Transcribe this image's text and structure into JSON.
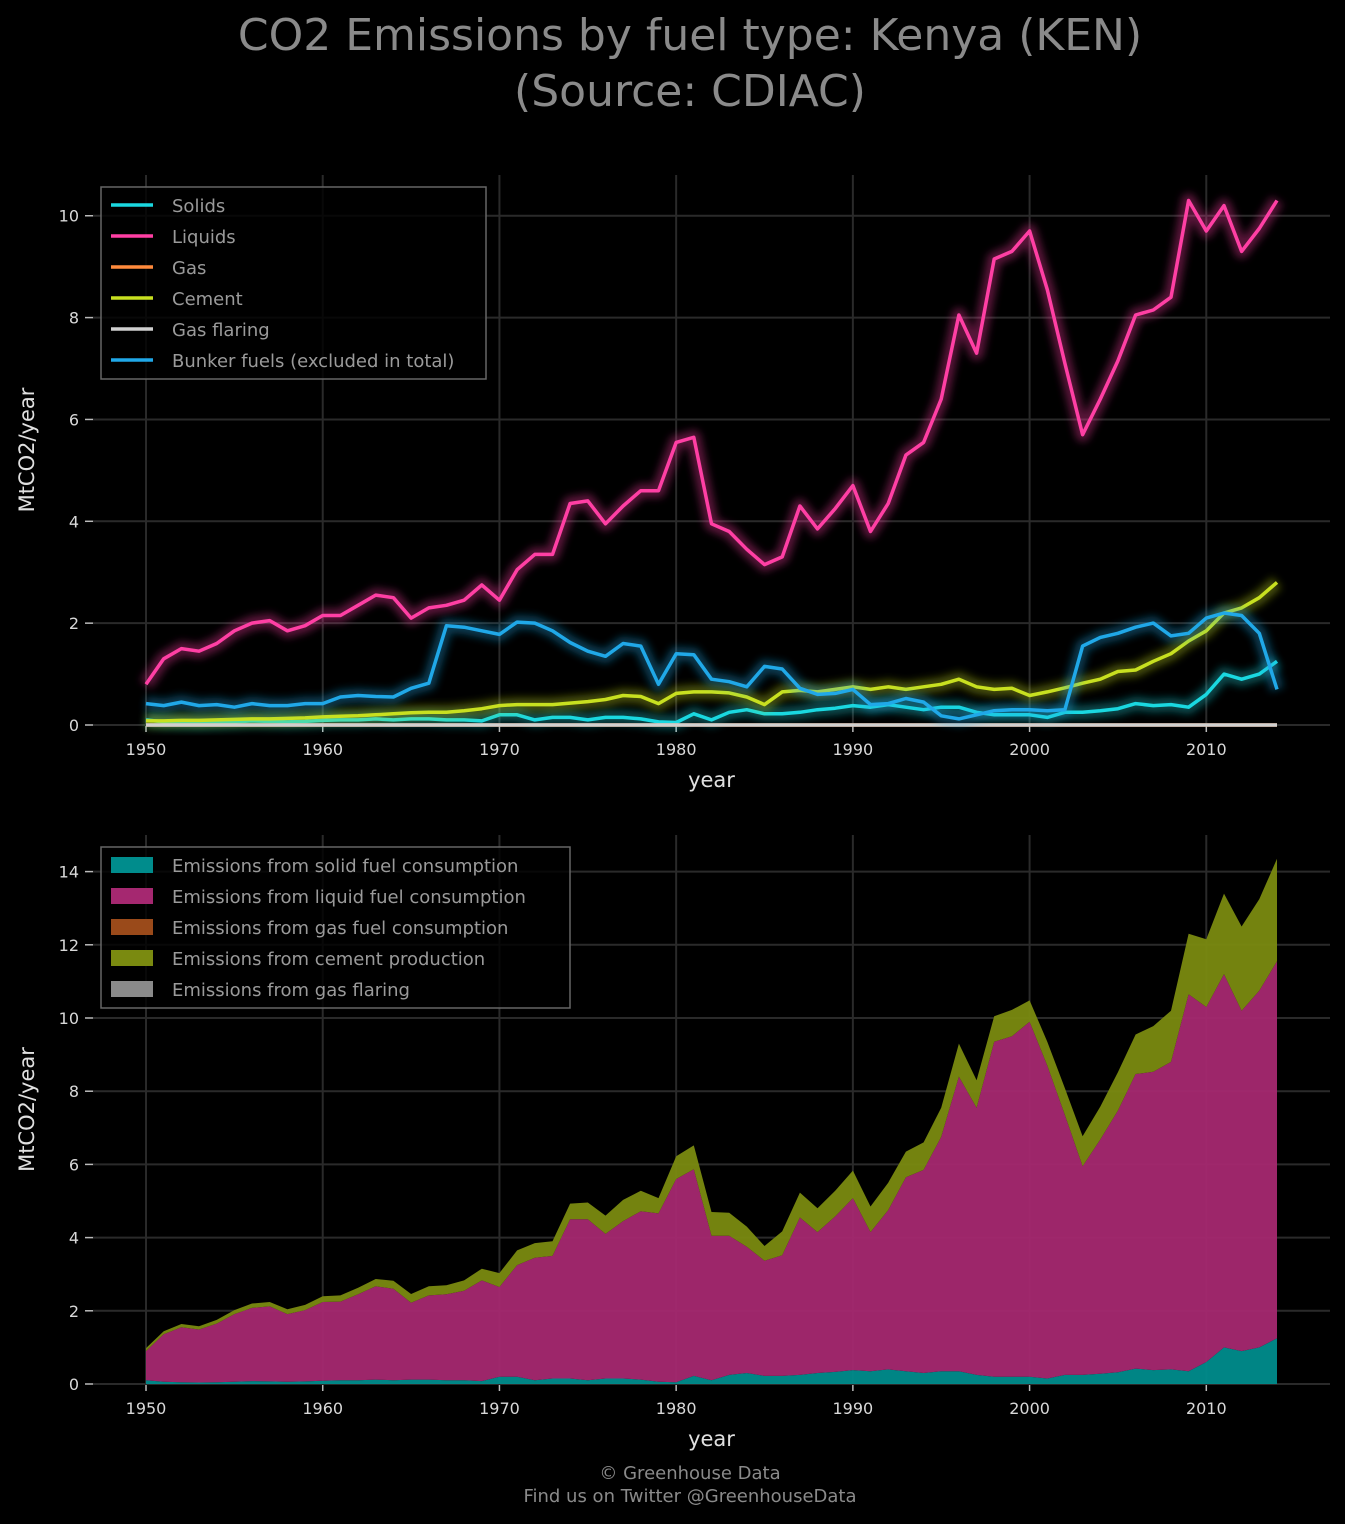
{
  "title": {
    "line1": "CO2 Emissions by fuel type: Kenya (KEN)",
    "line2": "(Source: CDIAC)"
  },
  "credits": {
    "line1": "© Greenhouse Data",
    "line2": "Find us on Twitter @GreenhouseData"
  },
  "colors": {
    "background": "#000000",
    "grid": "#2a2a2a",
    "solids": "#1ad8e0",
    "liquids": "#ff3fa4",
    "gas": "#ff8a3c",
    "cement": "#c8e020",
    "gas_flaring": "#d0d0d0",
    "bunker": "#20a8e8",
    "area_solid": "#008c8c",
    "area_liquid": "#a52870",
    "area_gas": "#9a4a1a",
    "area_cement": "#7a8a10",
    "area_flaring": "#8a8a8a"
  },
  "chart_data": [
    {
      "type": "line",
      "xlabel": "year",
      "ylabel": "MtCO2/year",
      "xlim": [
        1947,
        2017
      ],
      "ylim": [
        0,
        10.8
      ],
      "xticks": [
        1950,
        1960,
        1970,
        1980,
        1990,
        2000,
        2010
      ],
      "yticks": [
        0,
        2,
        4,
        6,
        8,
        10
      ],
      "grid": true,
      "legend_position": "top-left",
      "x": [
        1950,
        1951,
        1952,
        1953,
        1954,
        1955,
        1956,
        1957,
        1958,
        1959,
        1960,
        1961,
        1962,
        1963,
        1964,
        1965,
        1966,
        1967,
        1968,
        1969,
        1970,
        1971,
        1972,
        1973,
        1974,
        1975,
        1976,
        1977,
        1978,
        1979,
        1980,
        1981,
        1982,
        1983,
        1984,
        1985,
        1986,
        1987,
        1988,
        1989,
        1990,
        1991,
        1992,
        1993,
        1994,
        1995,
        1996,
        1997,
        1998,
        1999,
        2000,
        2001,
        2002,
        2003,
        2004,
        2005,
        2006,
        2007,
        2008,
        2009,
        2010,
        2011,
        2012,
        2013,
        2014
      ],
      "series": [
        {
          "name": "Solids",
          "color_key": "solids",
          "values": [
            0.1,
            0.06,
            0.05,
            0.04,
            0.05,
            0.06,
            0.08,
            0.07,
            0.06,
            0.07,
            0.09,
            0.1,
            0.1,
            0.12,
            0.1,
            0.12,
            0.12,
            0.1,
            0.1,
            0.08,
            0.2,
            0.2,
            0.1,
            0.15,
            0.15,
            0.1,
            0.15,
            0.15,
            0.12,
            0.06,
            0.05,
            0.22,
            0.1,
            0.25,
            0.3,
            0.22,
            0.22,
            0.25,
            0.3,
            0.33,
            0.38,
            0.35,
            0.4,
            0.35,
            0.3,
            0.35,
            0.35,
            0.25,
            0.2,
            0.2,
            0.2,
            0.15,
            0.25,
            0.25,
            0.28,
            0.32,
            0.42,
            0.38,
            0.4,
            0.35,
            0.6,
            1.0,
            0.9,
            1.0,
            1.25
          ]
        },
        {
          "name": "Liquids",
          "color_key": "liquids",
          "values": [
            0.8,
            1.3,
            1.5,
            1.45,
            1.6,
            1.85,
            2.0,
            2.05,
            1.85,
            1.95,
            2.15,
            2.15,
            2.35,
            2.55,
            2.5,
            2.1,
            2.3,
            2.35,
            2.45,
            2.75,
            2.45,
            3.05,
            3.35,
            3.35,
            4.35,
            4.4,
            3.95,
            4.3,
            4.6,
            4.6,
            5.55,
            5.65,
            3.95,
            3.8,
            3.45,
            3.15,
            3.3,
            4.3,
            3.85,
            4.25,
            4.7,
            3.8,
            4.35,
            5.3,
            5.55,
            6.4,
            8.05,
            7.3,
            9.15,
            9.3,
            9.7,
            8.55,
            7.1,
            5.7,
            6.4,
            7.15,
            8.05,
            8.15,
            8.4,
            10.3,
            9.7,
            10.2,
            9.3,
            9.75,
            10.3
          ]
        },
        {
          "name": "Gas",
          "color_key": "gas",
          "values": [
            0,
            0,
            0,
            0,
            0,
            0,
            0,
            0,
            0,
            0,
            0,
            0,
            0,
            0,
            0,
            0,
            0,
            0,
            0,
            0,
            0,
            0,
            0,
            0,
            0,
            0,
            0,
            0,
            0,
            0,
            0,
            0,
            0,
            0,
            0,
            0,
            0,
            0,
            0,
            0,
            0,
            0,
            0,
            0,
            0,
            0,
            0,
            0,
            0,
            0,
            0,
            0,
            0,
            0,
            0,
            0,
            0,
            0,
            0,
            0,
            0,
            0,
            0,
            0,
            0
          ]
        },
        {
          "name": "Cement",
          "color_key": "cement",
          "values": [
            0.08,
            0.08,
            0.09,
            0.09,
            0.1,
            0.11,
            0.12,
            0.12,
            0.13,
            0.14,
            0.16,
            0.17,
            0.18,
            0.2,
            0.22,
            0.24,
            0.25,
            0.25,
            0.28,
            0.32,
            0.38,
            0.4,
            0.4,
            0.4,
            0.43,
            0.46,
            0.5,
            0.58,
            0.56,
            0.42,
            0.62,
            0.65,
            0.65,
            0.63,
            0.55,
            0.4,
            0.65,
            0.68,
            0.65,
            0.7,
            0.75,
            0.7,
            0.75,
            0.7,
            0.75,
            0.8,
            0.9,
            0.75,
            0.7,
            0.72,
            0.58,
            0.65,
            0.73,
            0.82,
            0.9,
            1.05,
            1.08,
            1.25,
            1.4,
            1.65,
            1.85,
            2.2,
            2.3,
            2.5,
            2.8
          ]
        },
        {
          "name": "Gas flaring",
          "color_key": "gas_flaring",
          "values": [
            0,
            0,
            0,
            0,
            0,
            0,
            0,
            0,
            0,
            0,
            0,
            0,
            0,
            0,
            0,
            0,
            0,
            0,
            0,
            0,
            0,
            0,
            0,
            0,
            0,
            0,
            0,
            0,
            0,
            0,
            0,
            0,
            0,
            0,
            0,
            0,
            0,
            0,
            0,
            0,
            0,
            0,
            0,
            0,
            0,
            0,
            0,
            0,
            0,
            0,
            0,
            0,
            0,
            0,
            0,
            0,
            0,
            0,
            0,
            0,
            0,
            0,
            0,
            0,
            0
          ]
        },
        {
          "name": "Bunker fuels (excluded in total)",
          "color_key": "bunker",
          "values": [
            0.42,
            0.38,
            0.45,
            0.38,
            0.4,
            0.35,
            0.42,
            0.38,
            0.38,
            0.42,
            0.42,
            0.55,
            0.58,
            0.56,
            0.55,
            0.72,
            0.82,
            1.95,
            1.92,
            1.85,
            1.78,
            2.02,
            2.0,
            1.85,
            1.62,
            1.45,
            1.35,
            1.6,
            1.55,
            0.8,
            1.4,
            1.38,
            0.9,
            0.85,
            0.75,
            1.15,
            1.1,
            0.72,
            0.6,
            0.62,
            0.7,
            0.4,
            0.42,
            0.52,
            0.45,
            0.18,
            0.12,
            0.2,
            0.28,
            0.3,
            0.3,
            0.28,
            0.3,
            1.55,
            1.72,
            1.8,
            1.92,
            2.0,
            1.75,
            1.8,
            2.1,
            2.2,
            2.15,
            1.8,
            0.7
          ]
        }
      ]
    },
    {
      "type": "area",
      "stacked": true,
      "xlabel": "year",
      "ylabel": "MtCO2/year",
      "xlim": [
        1947,
        2017
      ],
      "ylim": [
        0,
        15
      ],
      "xticks": [
        1950,
        1960,
        1970,
        1980,
        1990,
        2000,
        2010
      ],
      "yticks": [
        0,
        2,
        4,
        6,
        8,
        10,
        12,
        14
      ],
      "grid": true,
      "legend_position": "top-left",
      "x": [
        1950,
        1951,
        1952,
        1953,
        1954,
        1955,
        1956,
        1957,
        1958,
        1959,
        1960,
        1961,
        1962,
        1963,
        1964,
        1965,
        1966,
        1967,
        1968,
        1969,
        1970,
        1971,
        1972,
        1973,
        1974,
        1975,
        1976,
        1977,
        1978,
        1979,
        1980,
        1981,
        1982,
        1983,
        1984,
        1985,
        1986,
        1987,
        1988,
        1989,
        1990,
        1991,
        1992,
        1993,
        1994,
        1995,
        1996,
        1997,
        1998,
        1999,
        2000,
        2001,
        2002,
        2003,
        2004,
        2005,
        2006,
        2007,
        2008,
        2009,
        2010,
        2011,
        2012,
        2013,
        2014
      ],
      "series": [
        {
          "name": "Emissions from solid fuel consumption",
          "color_key": "area_solid",
          "values": [
            0.1,
            0.06,
            0.05,
            0.04,
            0.05,
            0.06,
            0.08,
            0.07,
            0.06,
            0.07,
            0.09,
            0.1,
            0.1,
            0.12,
            0.1,
            0.12,
            0.12,
            0.1,
            0.1,
            0.08,
            0.2,
            0.2,
            0.1,
            0.15,
            0.15,
            0.1,
            0.15,
            0.15,
            0.12,
            0.06,
            0.05,
            0.22,
            0.1,
            0.25,
            0.3,
            0.22,
            0.22,
            0.25,
            0.3,
            0.33,
            0.38,
            0.35,
            0.4,
            0.35,
            0.3,
            0.35,
            0.35,
            0.25,
            0.2,
            0.2,
            0.2,
            0.15,
            0.25,
            0.25,
            0.28,
            0.32,
            0.42,
            0.38,
            0.4,
            0.35,
            0.6,
            1.0,
            0.9,
            1.0,
            1.25
          ]
        },
        {
          "name": "Emissions from liquid fuel consumption",
          "color_key": "area_liquid",
          "values": [
            0.8,
            1.3,
            1.5,
            1.45,
            1.6,
            1.85,
            2.0,
            2.05,
            1.85,
            1.95,
            2.15,
            2.15,
            2.35,
            2.55,
            2.5,
            2.1,
            2.3,
            2.35,
            2.45,
            2.75,
            2.45,
            3.05,
            3.35,
            3.35,
            4.35,
            4.4,
            3.95,
            4.3,
            4.6,
            4.6,
            5.55,
            5.65,
            3.95,
            3.8,
            3.45,
            3.15,
            3.3,
            4.3,
            3.85,
            4.25,
            4.7,
            3.8,
            4.35,
            5.3,
            5.55,
            6.4,
            8.05,
            7.3,
            9.15,
            9.3,
            9.7,
            8.55,
            7.1,
            5.7,
            6.4,
            7.15,
            8.05,
            8.15,
            8.4,
            10.3,
            9.7,
            10.2,
            9.3,
            9.75,
            10.3
          ]
        },
        {
          "name": "Emissions from gas fuel consumption",
          "color_key": "area_gas",
          "values": [
            0,
            0,
            0,
            0,
            0,
            0,
            0,
            0,
            0,
            0,
            0,
            0,
            0,
            0,
            0,
            0,
            0,
            0,
            0,
            0,
            0,
            0,
            0,
            0,
            0,
            0,
            0,
            0,
            0,
            0,
            0,
            0,
            0,
            0,
            0,
            0,
            0,
            0,
            0,
            0,
            0,
            0,
            0,
            0,
            0,
            0,
            0,
            0,
            0,
            0,
            0,
            0,
            0,
            0,
            0,
            0,
            0,
            0,
            0,
            0,
            0,
            0,
            0,
            0,
            0
          ]
        },
        {
          "name": "Emissions from cement production",
          "color_key": "area_cement",
          "values": [
            0.08,
            0.08,
            0.09,
            0.09,
            0.1,
            0.11,
            0.12,
            0.12,
            0.13,
            0.14,
            0.16,
            0.17,
            0.18,
            0.2,
            0.22,
            0.24,
            0.25,
            0.25,
            0.28,
            0.32,
            0.38,
            0.4,
            0.4,
            0.4,
            0.43,
            0.46,
            0.5,
            0.58,
            0.56,
            0.42,
            0.62,
            0.65,
            0.65,
            0.63,
            0.55,
            0.4,
            0.65,
            0.68,
            0.65,
            0.7,
            0.75,
            0.7,
            0.75,
            0.7,
            0.75,
            0.8,
            0.9,
            0.75,
            0.7,
            0.72,
            0.58,
            0.65,
            0.73,
            0.82,
            0.9,
            1.05,
            1.08,
            1.25,
            1.4,
            1.65,
            1.85,
            2.2,
            2.3,
            2.5,
            2.8
          ]
        },
        {
          "name": "Emissions from gas flaring",
          "color_key": "area_flaring",
          "values": [
            0,
            0,
            0,
            0,
            0,
            0,
            0,
            0,
            0,
            0,
            0,
            0,
            0,
            0,
            0,
            0,
            0,
            0,
            0,
            0,
            0,
            0,
            0,
            0,
            0,
            0,
            0,
            0,
            0,
            0,
            0,
            0,
            0,
            0,
            0,
            0,
            0,
            0,
            0,
            0,
            0,
            0,
            0,
            0,
            0,
            0,
            0,
            0,
            0,
            0,
            0,
            0,
            0,
            0,
            0,
            0,
            0,
            0,
            0,
            0,
            0,
            0,
            0,
            0,
            0
          ]
        }
      ]
    }
  ]
}
